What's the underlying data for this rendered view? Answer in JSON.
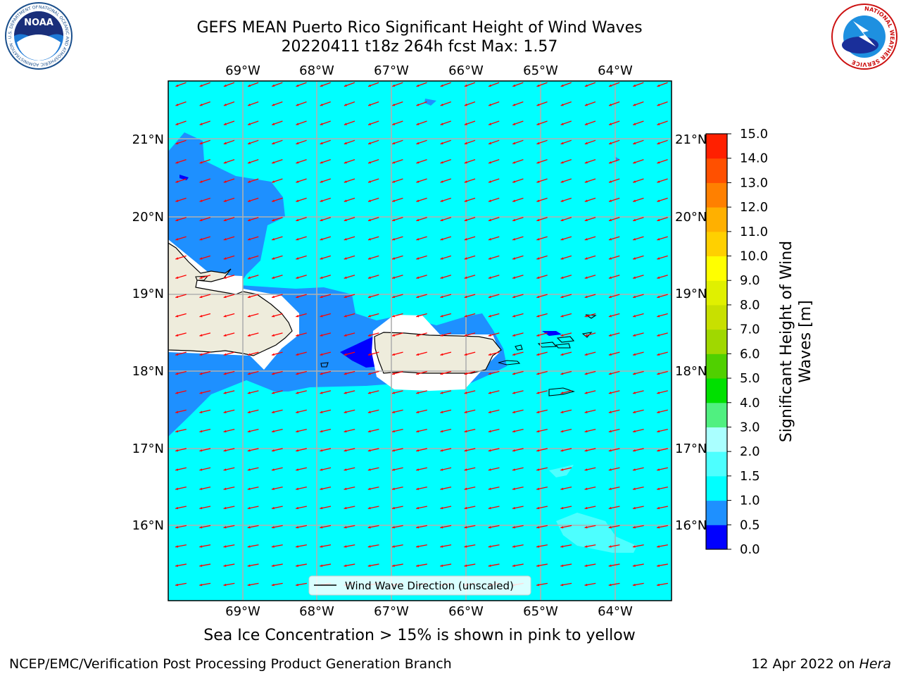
{
  "title": {
    "line1": "GEFS MEAN Puerto Rico Significant Height of Wind Waves",
    "line2": "20220411 t18z 264h fcst   Max: 1.57"
  },
  "map": {
    "lon_labels": [
      "69°W",
      "68°W",
      "67°W",
      "66°W",
      "65°W",
      "64°W"
    ],
    "lat_labels": [
      "21°N",
      "20°N",
      "19°N",
      "18°N",
      "17°N",
      "16°N"
    ],
    "legend_label": "Wind Wave Direction (unscaled)",
    "colors": {
      "ocean_main": "#00ffff",
      "ocean_low": "#1e90ff",
      "ocean_lowest": "#0000ff",
      "ocean_light": "#4dffff",
      "land": "#eeecdc",
      "arrow": "#ff0000"
    }
  },
  "colorbar": {
    "label_line1": "Significant Height of Wind",
    "label_line2": "Waves [m]",
    "ticks": [
      "0.0",
      "0.5",
      "1.0",
      "1.5",
      "2.0",
      "3.0",
      "4.0",
      "5.0",
      "6.0",
      "7.0",
      "8.0",
      "9.0",
      "10.0",
      "11.0",
      "12.0",
      "13.0",
      "14.0",
      "15.0"
    ],
    "colors": [
      "#0000ff",
      "#1e90ff",
      "#00ffff",
      "#4dffff",
      "#aaffff",
      "#50f080",
      "#00e000",
      "#50d000",
      "#a0d800",
      "#c8e000",
      "#e0f000",
      "#ffff00",
      "#ffd000",
      "#ffb000",
      "#ff8000",
      "#ff5000",
      "#ff2000"
    ]
  },
  "subtitle": "Sea Ice Concentration > 15% is shown in pink to yellow",
  "footer": {
    "left": "NCEP/EMC/Verification Post Processing Product Generation Branch",
    "right_date": "12 Apr 2022 on ",
    "right_machine": "Hera"
  },
  "logos": {
    "noaa_text": "NOAA",
    "noaa_ring": "NATIONAL OCEANIC AND ATMOSPHERIC ADMINISTRATION · U.S. DEPARTMENT OF COMMERCE",
    "nws_ring": "NATIONAL WEATHER SERVICE"
  }
}
